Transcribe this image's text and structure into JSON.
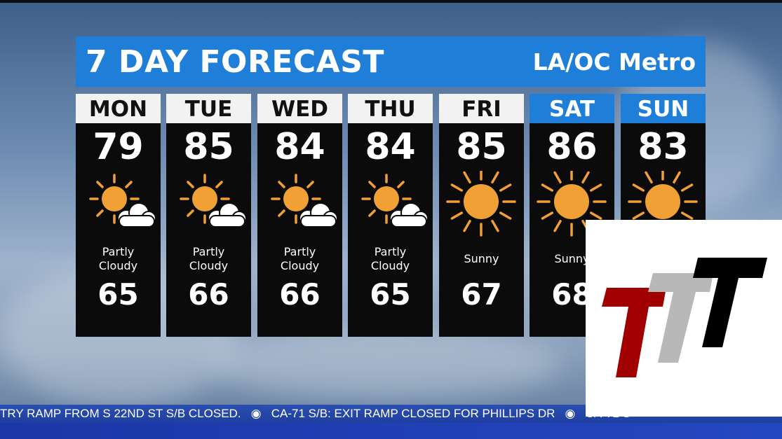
{
  "header": {
    "title": "7 DAY FORECAST",
    "region": "LA/OC Metro"
  },
  "days": [
    {
      "day": "MON",
      "high": "79",
      "condition": "Partly Cloudy",
      "low": "65",
      "icon": "partly-cloudy-icon",
      "weekend": false
    },
    {
      "day": "TUE",
      "high": "85",
      "condition": "Partly Cloudy",
      "low": "66",
      "icon": "partly-cloudy-icon",
      "weekend": false
    },
    {
      "day": "WED",
      "high": "84",
      "condition": "Partly Cloudy",
      "low": "66",
      "icon": "partly-cloudy-icon",
      "weekend": false
    },
    {
      "day": "THU",
      "high": "84",
      "condition": "Partly Cloudy",
      "low": "65",
      "icon": "partly-cloudy-icon",
      "weekend": false
    },
    {
      "day": "FRI",
      "high": "85",
      "condition": "Sunny",
      "low": "67",
      "icon": "sunny-icon",
      "weekend": false
    },
    {
      "day": "SAT",
      "high": "86",
      "condition": "Sunny",
      "low": "68",
      "icon": "sunny-icon",
      "weekend": true
    },
    {
      "day": "SUN",
      "high": "83",
      "condition": "",
      "low": "",
      "icon": "sunny-icon",
      "weekend": true
    }
  ],
  "ticker": {
    "text": "TRY RAMP FROM S 22ND ST S/B CLOSED.   ◉   CA-71 S/B: EXIT RAMP CLOSED FOR PHILLIPS DR   ◉   CA-71 S"
  },
  "logo": {
    "text": "TTT",
    "colors": [
      "#a00000",
      "#b8b8b8",
      "#000000"
    ]
  },
  "colors": {
    "accent": "#1f7fd8",
    "sun": "#f0a035",
    "panel": "#0b0b0c"
  }
}
